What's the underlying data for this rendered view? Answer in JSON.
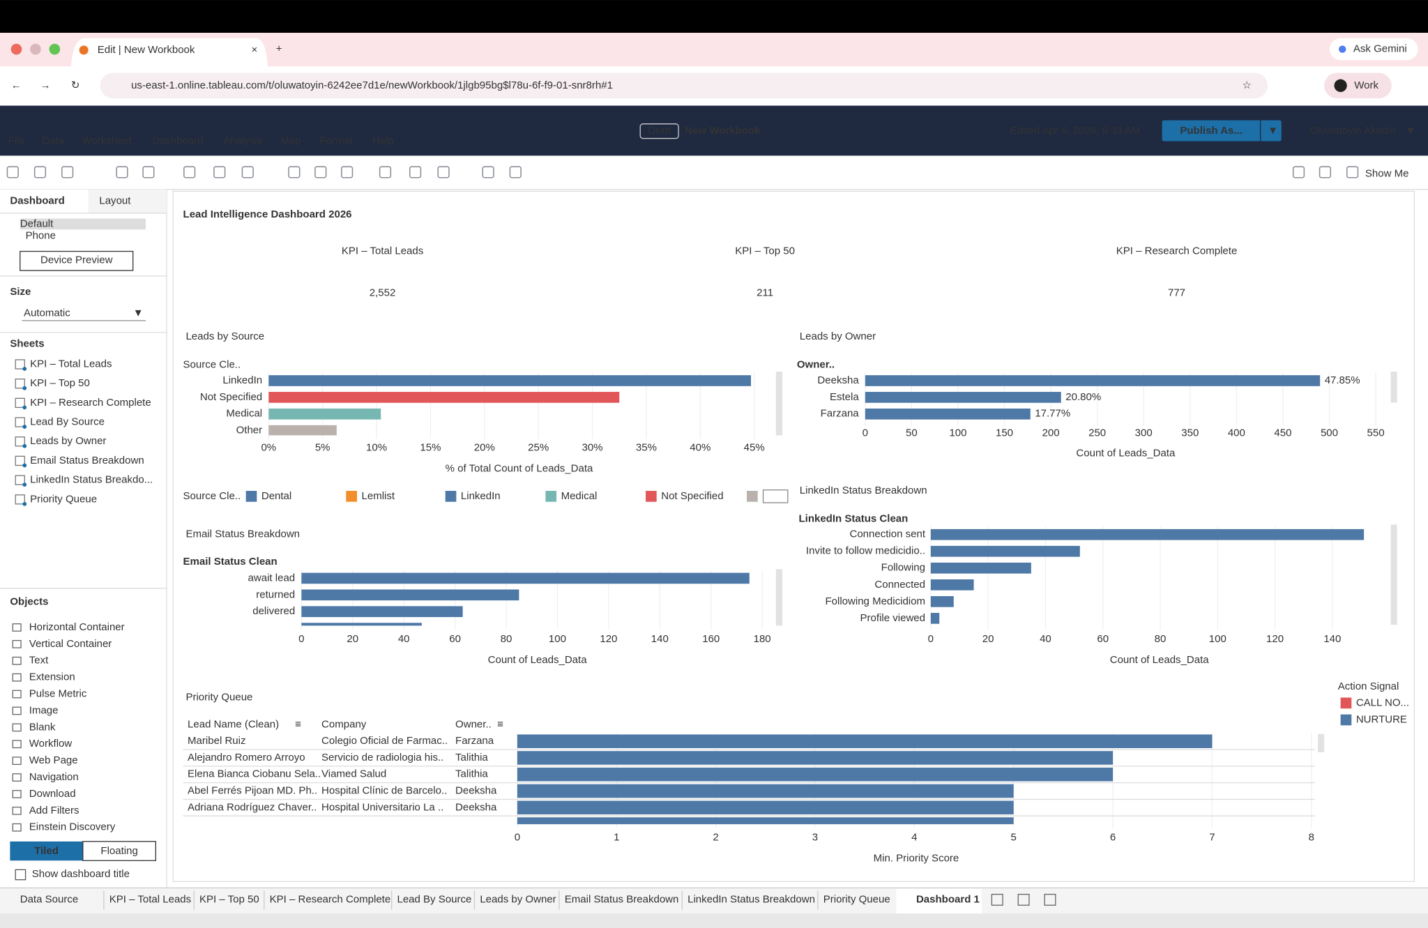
{
  "browser": {
    "tab_title": "Edit | New Workbook",
    "url": "us-east-1.online.tableau.com/t/oluwatoyin-6242ee7d1e/newWorkbook/1jlgb95bg$l78u-6f-f9-01-snr8rh#1",
    "ask_gemini": "Ask Gemini",
    "profile": "Work"
  },
  "menu": [
    "File",
    "Data",
    "Worksheet",
    "Dashboard",
    "Analysis",
    "Map",
    "Format",
    "Help"
  ],
  "header": {
    "draft": "Draft",
    "workbook": "New Workbook",
    "edited": "Edited Apr 6, 2026, 9:33 AM",
    "publish": "Publish As...",
    "user": "Oluwatoyin Akadiri"
  },
  "toolbar": {
    "show_me": "Show Me"
  },
  "sidebar": {
    "tabs": [
      "Dashboard",
      "Layout"
    ],
    "devices": [
      "Default",
      "Phone"
    ],
    "device_preview": "Device Preview",
    "size_label": "Size",
    "size_value": "Automatic",
    "sheets_label": "Sheets",
    "sheets": [
      "KPI – Total Leads",
      "KPI – Top 50",
      "KPI – Research Complete",
      "Lead By Source",
      "Leads by Owner",
      "Email Status Breakdown",
      "LinkedIn Status Breakdo...",
      "Priority Queue"
    ],
    "objects_label": "Objects",
    "objects": [
      "Horizontal Container",
      "Vertical Container",
      "Text",
      "Extension",
      "Pulse Metric",
      "Image",
      "Blank",
      "Workflow",
      "Web Page",
      "Navigation",
      "Download",
      "Add Filters",
      "Einstein Discovery"
    ],
    "tiled": "Tiled",
    "floating": "Floating",
    "show_title": "Show dashboard title"
  },
  "dashboard": {
    "title": "Lead Intelligence Dashboard 2026",
    "kpis": [
      {
        "label": "KPI – Total Leads",
        "value": "2,552"
      },
      {
        "label": "KPI – Top 50",
        "value": "211"
      },
      {
        "label": "KPI – Research Complete",
        "value": "777"
      }
    ],
    "charts": [
      {
        "type": "bar",
        "title": "Leads by Source",
        "field_label": "Source Cle..",
        "categories": [
          "LinkedIn",
          "Not Specified",
          "Medical",
          "Other"
        ],
        "values": [
          44.7,
          32.5,
          10.4,
          6.3
        ],
        "colors": [
          "#4e79a7",
          "#e15759",
          "#76b7b2",
          "#bab0ac"
        ],
        "xlim": [
          0,
          46
        ],
        "xticks": [
          {
            "value": 0,
            "label": "0%"
          },
          {
            "value": 5,
            "label": "5%"
          },
          {
            "value": 10,
            "label": "10%"
          },
          {
            "value": 15,
            "label": "15%"
          },
          {
            "value": 20,
            "label": "20%"
          },
          {
            "value": 25,
            "label": "25%"
          },
          {
            "value": 30,
            "label": "30%"
          },
          {
            "value": 35,
            "label": "35%"
          },
          {
            "value": 40,
            "label": "40%"
          },
          {
            "value": 45,
            "label": "45%"
          }
        ],
        "xlabel": "% of Total Count of Leads_Data",
        "legend": {
          "title": "Source Cle..",
          "names": [
            "Dental",
            "Lemlist",
            "LinkedIn",
            "Medical",
            "Not Specified"
          ],
          "colors": [
            "#4e79a7",
            "#f28e2b",
            "#4e79a7",
            "#76b7b2",
            "#e15759"
          ]
        }
      },
      {
        "type": "bar",
        "title": "Leads by Owner",
        "field_label": "Owner..",
        "categories": [
          "Deeksha",
          "Estela",
          "Farzana"
        ],
        "values": [
          490,
          211,
          178
        ],
        "color": "#4e79a7",
        "bar_labels": [
          "47.85%",
          "20.80%",
          "17.77%"
        ],
        "xlim": [
          0,
          570
        ],
        "xticks": [
          0,
          50,
          100,
          150,
          200,
          250,
          300,
          350,
          400,
          450,
          500,
          550
        ],
        "xlabel": "Count of Leads_Data"
      },
      {
        "type": "bar",
        "title": "Email Status Breakdown",
        "field_label": "Email Status Clean",
        "categories": [
          "await lead",
          "returned",
          "delivered",
          null
        ],
        "values": [
          175,
          85,
          63,
          47
        ],
        "color": "#4e79a7",
        "xlim": [
          0,
          185
        ],
        "xticks": [
          0,
          20,
          40,
          60,
          80,
          100,
          120,
          140,
          160,
          180
        ],
        "xlabel": "Count of Leads_Data"
      },
      {
        "type": "bar",
        "title": "LinkedIn Status Breakdown",
        "field_label": "LinkedIn Status Clean",
        "categories": [
          "Connection sent",
          "Invite to follow medicidio..",
          "Following",
          "Connected",
          "Following Medicidiom",
          "Profile viewed"
        ],
        "values": [
          151,
          52,
          35,
          15,
          8,
          3
        ],
        "color": "#4e79a7",
        "xlim": [
          0,
          160
        ],
        "xticks": [
          0,
          20,
          40,
          60,
          80,
          100,
          120,
          140
        ],
        "xlabel": "Count of Leads_Data"
      },
      {
        "type": "table-bar",
        "title": "Priority Queue",
        "columns": [
          "Lead Name (Clean)",
          "Company",
          "Owner.."
        ],
        "lead_names": [
          "Maribel Ruiz",
          "Alejandro Romero Arroyo",
          "Elena Bianca Ciobanu Sela..",
          "Abel Ferrés Pijoan MD. Ph..",
          "Adriana Rodríguez Chaver..",
          null
        ],
        "companies": [
          "Colegio Oficial de Farmac..",
          "Servicio de radiologia his..",
          "Viamed Salud",
          "Hospital Clínic de Barcelo..",
          "Hospital Universitario La ..",
          null
        ],
        "owners": [
          "Farzana",
          "Talithia",
          "Talithia",
          "Deeksha",
          "Deeksha",
          null
        ],
        "values": [
          7,
          6,
          6,
          5,
          5,
          5
        ],
        "color": "#4e79a7",
        "xlim": [
          0,
          8
        ],
        "xticks": [
          0,
          1,
          2,
          3,
          4,
          5,
          6,
          7,
          8
        ],
        "xlabel": "Min. Priority Score",
        "legend": {
          "title": "Action Signal",
          "names": [
            "CALL NO...",
            "NURTURE"
          ],
          "colors": [
            "#e15759",
            "#4e79a7"
          ]
        }
      }
    ]
  },
  "tabs": [
    "Data Source",
    "KPI – Total Leads",
    "KPI – Top 50",
    "KPI – Research Complete",
    "Lead By Source",
    "Leads by Owner",
    "Email Status Breakdown",
    "LinkedIn Status Breakdown",
    "Priority Queue",
    "Dashboard 1"
  ]
}
